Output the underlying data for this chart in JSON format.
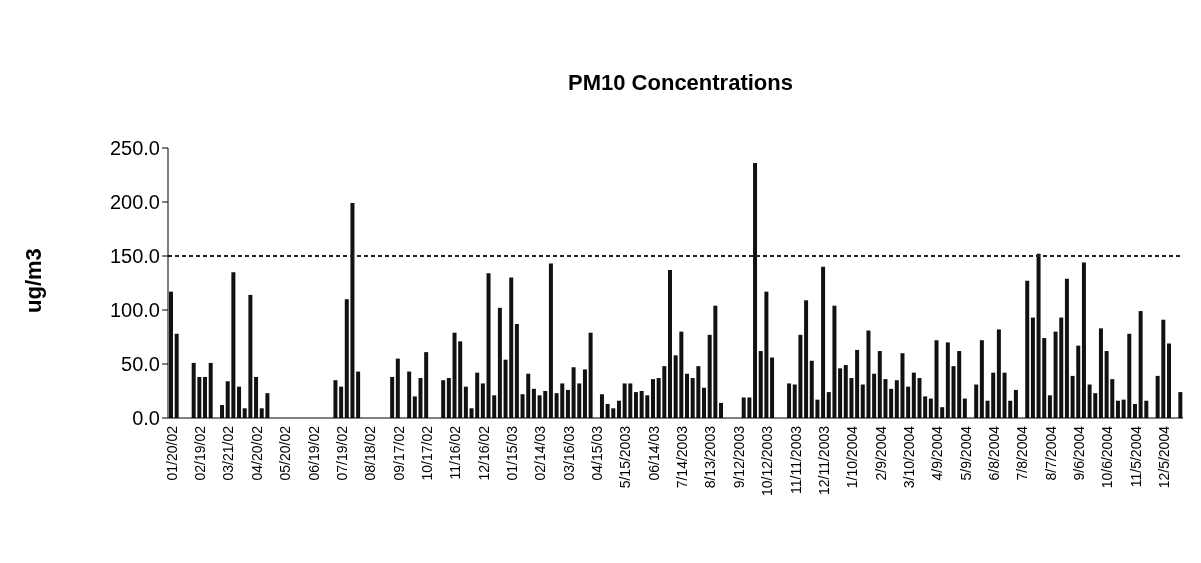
{
  "chart_data": {
    "type": "bar",
    "title": "PM10 Concentrations",
    "ylabel": "ug/m3",
    "categories": [
      "01/20/02",
      null,
      null,
      null,
      null,
      "02/19/02",
      null,
      null,
      null,
      null,
      "03/21/02",
      null,
      null,
      null,
      null,
      "04/20/02",
      null,
      null,
      null,
      null,
      "05/20/02",
      null,
      null,
      null,
      null,
      "06/19/02",
      null,
      null,
      null,
      null,
      "07/19/02",
      null,
      null,
      null,
      null,
      "08/18/02",
      null,
      null,
      null,
      null,
      "09/17/02",
      null,
      null,
      null,
      null,
      "10/17/02",
      null,
      null,
      null,
      null,
      "11/16/02",
      null,
      null,
      null,
      null,
      "12/16/02",
      null,
      null,
      null,
      null,
      "01/15/03",
      null,
      null,
      null,
      null,
      "02/14/03",
      null,
      null,
      null,
      null,
      "03/16/03",
      null,
      null,
      null,
      null,
      "04/15/03",
      null,
      null,
      null,
      null,
      "5/15/2003",
      null,
      null,
      null,
      null,
      "06/14/03",
      null,
      null,
      null,
      null,
      "7/14/2003",
      null,
      null,
      null,
      null,
      "8/13/2003",
      null,
      null,
      null,
      null,
      "9/12/2003",
      null,
      null,
      null,
      null,
      "10/12/2003",
      null,
      null,
      null,
      null,
      "11/11/2003",
      null,
      null,
      null,
      null,
      "12/11/2003",
      null,
      null,
      null,
      null,
      "1/10/2004",
      null,
      null,
      null,
      null,
      "2/9/2004",
      null,
      null,
      null,
      null,
      "3/10/2004",
      null,
      null,
      null,
      null,
      "4/9/2004",
      null,
      null,
      null,
      null,
      "5/9/2004",
      null,
      null,
      null,
      null,
      "6/8/2004",
      null,
      null,
      null,
      null,
      "7/8/2004",
      null,
      null,
      null,
      null,
      "8/7/2004",
      null,
      null,
      null,
      null,
      "9/6/2004",
      null,
      null,
      null,
      null,
      "10/6/2004",
      null,
      null,
      null,
      null,
      "11/5/2004",
      null,
      null,
      null,
      null,
      "12/5/2004",
      null,
      null,
      null
    ],
    "values": [
      117,
      78,
      null,
      null,
      51,
      38,
      38,
      51,
      null,
      12,
      34,
      135,
      29,
      9,
      114,
      38,
      9,
      23,
      null,
      null,
      null,
      null,
      null,
      null,
      null,
      null,
      null,
      null,
      null,
      35,
      29,
      110,
      199,
      43,
      null,
      null,
      null,
      null,
      null,
      38,
      55,
      null,
      43,
      20,
      37,
      61,
      null,
      null,
      35,
      37,
      79,
      71,
      29,
      9,
      42,
      32,
      134,
      21,
      102,
      54,
      130,
      87,
      22,
      41,
      27,
      21,
      25,
      143,
      23,
      32,
      26,
      47,
      32,
      45,
      79,
      null,
      22,
      13,
      9,
      16,
      32,
      32,
      24,
      25,
      21,
      36,
      37,
      48,
      137,
      58,
      80,
      41,
      37,
      48,
      28,
      77,
      104,
      14,
      null,
      null,
      null,
      19,
      19,
      236,
      62,
      117,
      56,
      null,
      null,
      32,
      31,
      77,
      109,
      53,
      17,
      140,
      24,
      104,
      46,
      49,
      37,
      63,
      31,
      81,
      41,
      62,
      36,
      27,
      35,
      60,
      29,
      42,
      37,
      20,
      18,
      72,
      10,
      70,
      48,
      62,
      18,
      null,
      31,
      72,
      16,
      42,
      82,
      42,
      16,
      26,
      null,
      127,
      93,
      152,
      74,
      21,
      80,
      93,
      129,
      39,
      67,
      144,
      31,
      23,
      83,
      62,
      36,
      16,
      17,
      78,
      13,
      99,
      16,
      null,
      39,
      91,
      69,
      null,
      24
    ],
    "color": "#111111",
    "ylim": [
      0,
      250
    ],
    "yticks": [
      {
        "value": 0,
        "label": "0.0"
      },
      {
        "value": 50,
        "label": "50.0"
      },
      {
        "value": 100,
        "label": "100.0"
      },
      {
        "value": 150,
        "label": "150.0"
      },
      {
        "value": 200,
        "label": "200.0"
      },
      {
        "value": 250,
        "label": "250.0"
      }
    ],
    "ref_lines": [
      {
        "axis": "y",
        "value": 150,
        "label": null,
        "color": "#222222",
        "line_style": "dashed"
      }
    ]
  }
}
